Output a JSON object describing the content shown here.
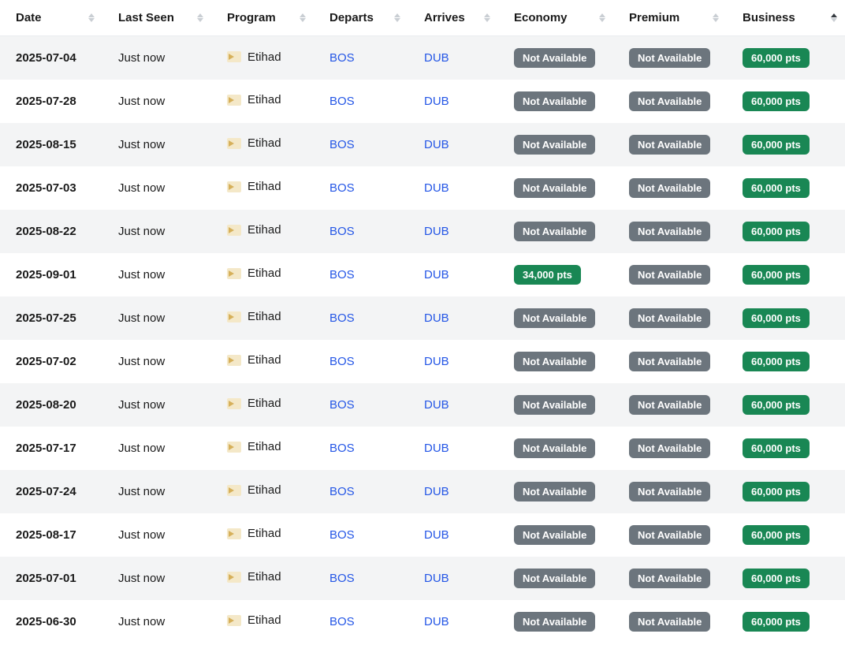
{
  "table": {
    "columns": [
      {
        "key": "date",
        "label": "Date",
        "sortable": true,
        "sorted": null
      },
      {
        "key": "lastSeen",
        "label": "Last Seen",
        "sortable": true,
        "sorted": null
      },
      {
        "key": "program",
        "label": "Program",
        "sortable": true,
        "sorted": null
      },
      {
        "key": "departs",
        "label": "Departs",
        "sortable": true,
        "sorted": null
      },
      {
        "key": "arrives",
        "label": "Arrives",
        "sortable": true,
        "sorted": null
      },
      {
        "key": "economy",
        "label": "Economy",
        "sortable": true,
        "sorted": null
      },
      {
        "key": "premium",
        "label": "Premium",
        "sortable": true,
        "sorted": null
      },
      {
        "key": "business",
        "label": "Business",
        "sortable": true,
        "sorted": "asc"
      }
    ],
    "badge_colors": {
      "not_available": "#6c757d",
      "available": "#198754"
    },
    "link_color": "#2456e6",
    "row_alt_bg": "#f3f4f5",
    "rows": [
      {
        "date": "2025-07-04",
        "lastSeen": "Just now",
        "program": "Etihad",
        "departs": "BOS",
        "arrives": "DUB",
        "economy": {
          "text": "Not Available",
          "available": false
        },
        "premium": {
          "text": "Not Available",
          "available": false
        },
        "business": {
          "text": "60,000 pts",
          "available": true
        }
      },
      {
        "date": "2025-07-28",
        "lastSeen": "Just now",
        "program": "Etihad",
        "departs": "BOS",
        "arrives": "DUB",
        "economy": {
          "text": "Not Available",
          "available": false
        },
        "premium": {
          "text": "Not Available",
          "available": false
        },
        "business": {
          "text": "60,000 pts",
          "available": true
        }
      },
      {
        "date": "2025-08-15",
        "lastSeen": "Just now",
        "program": "Etihad",
        "departs": "BOS",
        "arrives": "DUB",
        "economy": {
          "text": "Not Available",
          "available": false
        },
        "premium": {
          "text": "Not Available",
          "available": false
        },
        "business": {
          "text": "60,000 pts",
          "available": true
        }
      },
      {
        "date": "2025-07-03",
        "lastSeen": "Just now",
        "program": "Etihad",
        "departs": "BOS",
        "arrives": "DUB",
        "economy": {
          "text": "Not Available",
          "available": false
        },
        "premium": {
          "text": "Not Available",
          "available": false
        },
        "business": {
          "text": "60,000 pts",
          "available": true
        }
      },
      {
        "date": "2025-08-22",
        "lastSeen": "Just now",
        "program": "Etihad",
        "departs": "BOS",
        "arrives": "DUB",
        "economy": {
          "text": "Not Available",
          "available": false
        },
        "premium": {
          "text": "Not Available",
          "available": false
        },
        "business": {
          "text": "60,000 pts",
          "available": true
        }
      },
      {
        "date": "2025-09-01",
        "lastSeen": "Just now",
        "program": "Etihad",
        "departs": "BOS",
        "arrives": "DUB",
        "economy": {
          "text": "34,000 pts",
          "available": true
        },
        "premium": {
          "text": "Not Available",
          "available": false
        },
        "business": {
          "text": "60,000 pts",
          "available": true
        }
      },
      {
        "date": "2025-07-25",
        "lastSeen": "Just now",
        "program": "Etihad",
        "departs": "BOS",
        "arrives": "DUB",
        "economy": {
          "text": "Not Available",
          "available": false
        },
        "premium": {
          "text": "Not Available",
          "available": false
        },
        "business": {
          "text": "60,000 pts",
          "available": true
        }
      },
      {
        "date": "2025-07-02",
        "lastSeen": "Just now",
        "program": "Etihad",
        "departs": "BOS",
        "arrives": "DUB",
        "economy": {
          "text": "Not Available",
          "available": false
        },
        "premium": {
          "text": "Not Available",
          "available": false
        },
        "business": {
          "text": "60,000 pts",
          "available": true
        }
      },
      {
        "date": "2025-08-20",
        "lastSeen": "Just now",
        "program": "Etihad",
        "departs": "BOS",
        "arrives": "DUB",
        "economy": {
          "text": "Not Available",
          "available": false
        },
        "premium": {
          "text": "Not Available",
          "available": false
        },
        "business": {
          "text": "60,000 pts",
          "available": true
        }
      },
      {
        "date": "2025-07-17",
        "lastSeen": "Just now",
        "program": "Etihad",
        "departs": "BOS",
        "arrives": "DUB",
        "economy": {
          "text": "Not Available",
          "available": false
        },
        "premium": {
          "text": "Not Available",
          "available": false
        },
        "business": {
          "text": "60,000 pts",
          "available": true
        }
      },
      {
        "date": "2025-07-24",
        "lastSeen": "Just now",
        "program": "Etihad",
        "departs": "BOS",
        "arrives": "DUB",
        "economy": {
          "text": "Not Available",
          "available": false
        },
        "premium": {
          "text": "Not Available",
          "available": false
        },
        "business": {
          "text": "60,000 pts",
          "available": true
        }
      },
      {
        "date": "2025-08-17",
        "lastSeen": "Just now",
        "program": "Etihad",
        "departs": "BOS",
        "arrives": "DUB",
        "economy": {
          "text": "Not Available",
          "available": false
        },
        "premium": {
          "text": "Not Available",
          "available": false
        },
        "business": {
          "text": "60,000 pts",
          "available": true
        }
      },
      {
        "date": "2025-07-01",
        "lastSeen": "Just now",
        "program": "Etihad",
        "departs": "BOS",
        "arrives": "DUB",
        "economy": {
          "text": "Not Available",
          "available": false
        },
        "premium": {
          "text": "Not Available",
          "available": false
        },
        "business": {
          "text": "60,000 pts",
          "available": true
        }
      },
      {
        "date": "2025-06-30",
        "lastSeen": "Just now",
        "program": "Etihad",
        "departs": "BOS",
        "arrives": "DUB",
        "economy": {
          "text": "Not Available",
          "available": false
        },
        "premium": {
          "text": "Not Available",
          "available": false
        },
        "business": {
          "text": "60,000 pts",
          "available": true
        }
      }
    ]
  }
}
